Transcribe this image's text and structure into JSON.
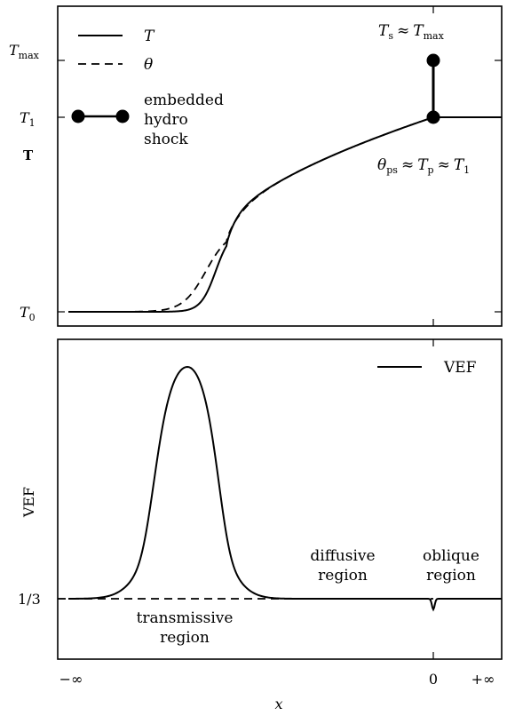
{
  "chart_data": [
    {
      "type": "line",
      "ylabel": "T",
      "y_ticks": [
        {
          "base": "T",
          "sub": "0"
        },
        {
          "base": "T",
          "sub": "1"
        },
        {
          "base": "T",
          "sub": "max"
        }
      ],
      "legend_placement": "top-left",
      "legend": {
        "T_label": "T",
        "theta_label": "θ",
        "shock_label_lines": [
          "embedded",
          "hydro",
          "shock"
        ]
      },
      "annotations": {
        "top": {
          "lhs": "T",
          "lhs_sub": "s",
          "approx": "≈",
          "rhs": "T",
          "rhs_sub": "max"
        },
        "bottom": {
          "a": "θ",
          "a_sub": "ps",
          "b": "T",
          "b_sub": "p",
          "c": "T",
          "c_sub": "1",
          "approx": "≈"
        }
      },
      "x_range": [
        -1,
        1
      ],
      "y_levels": {
        "T0": 0,
        "T1": 1,
        "Tmax": 1.3
      },
      "shock_x": 0,
      "series": [
        {
          "key": "T",
          "style": "solid"
        },
        {
          "key": "theta",
          "style": "dashed"
        }
      ],
      "grid": false
    },
    {
      "type": "line",
      "ylabel": "VEF",
      "xlabel": "x",
      "x_ticks": [
        "−∞",
        "0",
        "+∞"
      ],
      "y_ticks": [
        "1/3"
      ],
      "legend_placement": "top-right",
      "legend": {
        "label": "VEF"
      },
      "region_labels": {
        "transmissive": [
          "transmissive",
          "region"
        ],
        "diffusive": [
          "diffusive",
          "region"
        ],
        "oblique": [
          "oblique",
          "region"
        ]
      },
      "baseline": "1/3",
      "series": [
        {
          "key": "VEF",
          "style": "solid"
        },
        {
          "key": "baseline",
          "style": "dashed"
        }
      ],
      "grid": false
    }
  ]
}
